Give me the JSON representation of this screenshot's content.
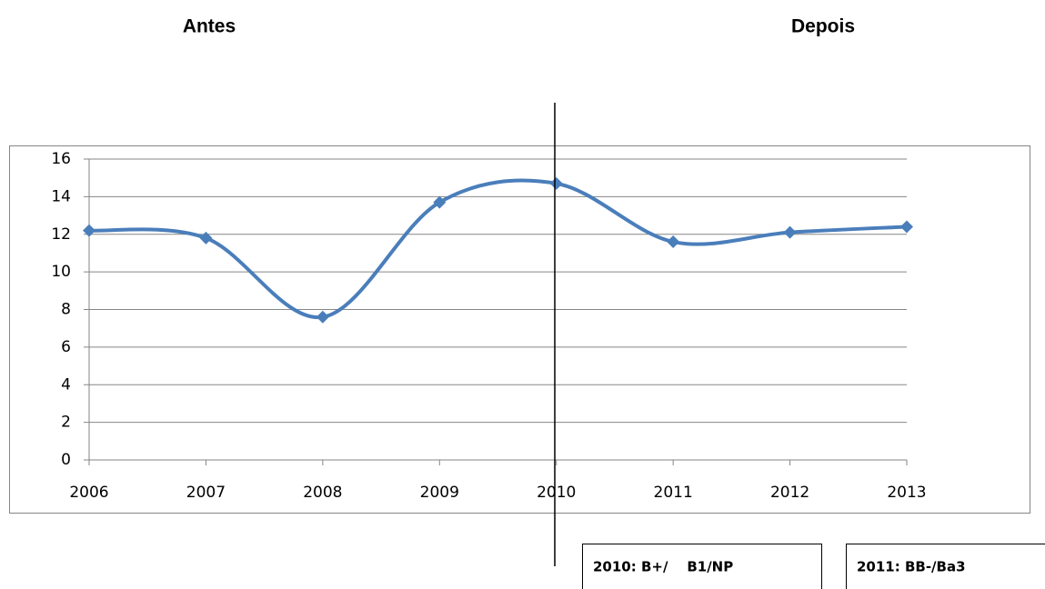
{
  "chart_data": {
    "type": "line",
    "annotations": [
      "Antes",
      "Depois",
      "2010: B+/    B1/NP",
      "2011: BB-/Ba3"
    ],
    "categories": [
      "2006",
      "2007",
      "2008",
      "2009",
      "2010",
      "2011",
      "2012",
      "2013"
    ],
    "values": [
      12.2,
      11.8,
      7.6,
      13.7,
      14.7,
      11.6,
      12.1,
      12.4
    ],
    "color": "#4a7ebb",
    "ylim": [
      0,
      16
    ],
    "yticks": [
      0,
      2,
      4,
      6,
      8,
      10,
      12,
      14,
      16
    ],
    "grid": true
  }
}
